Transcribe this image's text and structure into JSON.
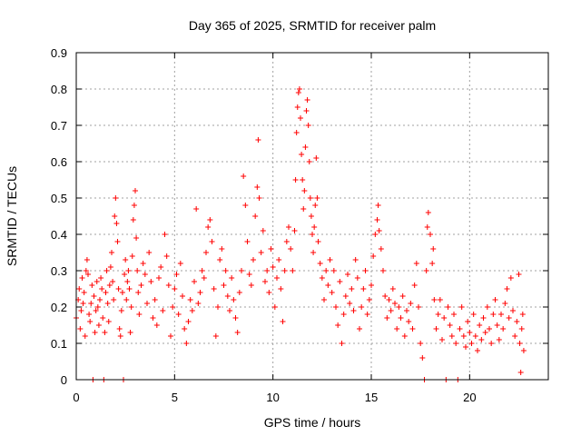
{
  "chart_data": {
    "type": "scatter",
    "title": "Day 365 of 2025, SRMTID for receiver palm",
    "xlabel": "GPS time / hours",
    "ylabel": "SRMTID / TECUs",
    "xlim": [
      0,
      24
    ],
    "ylim": [
      0,
      0.9
    ],
    "xticks": [
      0,
      5,
      10,
      15,
      20
    ],
    "yticks": [
      0,
      0.1,
      0.2,
      0.3,
      0.4,
      0.5,
      0.6,
      0.7,
      0.8,
      0.9
    ],
    "xtick_labels": [
      "0",
      "5",
      "10",
      "15",
      "20"
    ],
    "ytick_labels": [
      "0",
      "0.1",
      "0.2",
      "0.3",
      "0.4",
      "0.5",
      "0.6",
      "0.7",
      "0.8",
      "0.9"
    ],
    "grid": true,
    "marker": "+",
    "color": "#ff0000",
    "series": [
      {
        "name": "SRMTID",
        "points": [
          [
            0.0,
            0.17
          ],
          [
            0.1,
            0.22
          ],
          [
            0.15,
            0.25
          ],
          [
            0.2,
            0.14
          ],
          [
            0.25,
            0.19
          ],
          [
            0.3,
            0.28
          ],
          [
            0.35,
            0.21
          ],
          [
            0.4,
            0.24
          ],
          [
            0.45,
            0.12
          ],
          [
            0.5,
            0.3
          ],
          [
            0.55,
            0.33
          ],
          [
            0.6,
            0.29
          ],
          [
            0.65,
            0.18
          ],
          [
            0.7,
            0.16
          ],
          [
            0.75,
            0.21
          ],
          [
            0.8,
            0.26
          ],
          [
            0.85,
            0.0
          ],
          [
            0.9,
            0.23
          ],
          [
            0.95,
            0.13
          ],
          [
            1.0,
            0.19
          ],
          [
            1.05,
            0.27
          ],
          [
            1.1,
            0.2
          ],
          [
            1.15,
            0.15
          ],
          [
            1.2,
            0.22
          ],
          [
            1.25,
            0.28
          ],
          [
            1.3,
            0.25
          ],
          [
            1.35,
            0.17
          ],
          [
            1.4,
            0.0
          ],
          [
            1.45,
            0.13
          ],
          [
            1.5,
            0.24
          ],
          [
            1.55,
            0.3
          ],
          [
            1.6,
            0.21
          ],
          [
            1.65,
            0.16
          ],
          [
            1.7,
            0.26
          ],
          [
            1.75,
            0.31
          ],
          [
            1.8,
            0.35
          ],
          [
            1.85,
            0.27
          ],
          [
            1.9,
            0.22
          ],
          [
            1.95,
            0.45
          ],
          [
            2.0,
            0.5
          ],
          [
            2.05,
            0.43
          ],
          [
            2.1,
            0.38
          ],
          [
            2.15,
            0.25
          ],
          [
            2.2,
            0.14
          ],
          [
            2.25,
            0.12
          ],
          [
            2.3,
            0.19
          ],
          [
            2.35,
            0.24
          ],
          [
            2.4,
            0.0
          ],
          [
            2.45,
            0.29
          ],
          [
            2.5,
            0.33
          ],
          [
            2.55,
            0.22
          ],
          [
            2.6,
            0.27
          ],
          [
            2.65,
            0.3
          ],
          [
            2.7,
            0.25
          ],
          [
            2.75,
            0.13
          ],
          [
            2.8,
            0.2
          ],
          [
            2.85,
            0.34
          ],
          [
            2.9,
            0.44
          ],
          [
            2.95,
            0.48
          ],
          [
            3.0,
            0.52
          ],
          [
            3.05,
            0.39
          ],
          [
            3.1,
            0.3
          ],
          [
            3.15,
            0.24
          ],
          [
            3.2,
            0.18
          ],
          [
            3.3,
            0.26
          ],
          [
            3.4,
            0.32
          ],
          [
            3.5,
            0.29
          ],
          [
            3.6,
            0.21
          ],
          [
            3.7,
            0.35
          ],
          [
            3.8,
            0.27
          ],
          [
            3.9,
            0.17
          ],
          [
            4.0,
            0.22
          ],
          [
            4.1,
            0.15
          ],
          [
            4.2,
            0.28
          ],
          [
            4.3,
            0.31
          ],
          [
            4.4,
            0.19
          ],
          [
            4.5,
            0.4
          ],
          [
            4.6,
            0.34
          ],
          [
            4.7,
            0.26
          ],
          [
            4.8,
            0.12
          ],
          [
            4.9,
            0.2
          ],
          [
            5.0,
            0.25
          ],
          [
            5.1,
            0.29
          ],
          [
            5.2,
            0.18
          ],
          [
            5.3,
            0.32
          ],
          [
            5.4,
            0.23
          ],
          [
            5.5,
            0.14
          ],
          [
            5.6,
            0.1
          ],
          [
            5.7,
            0.16
          ],
          [
            5.8,
            0.22
          ],
          [
            5.9,
            0.19
          ],
          [
            6.0,
            0.27
          ],
          [
            6.1,
            0.47
          ],
          [
            6.2,
            0.21
          ],
          [
            6.3,
            0.24
          ],
          [
            6.4,
            0.3
          ],
          [
            6.5,
            0.28
          ],
          [
            6.6,
            0.35
          ],
          [
            6.7,
            0.42
          ],
          [
            6.8,
            0.44
          ],
          [
            6.9,
            0.38
          ],
          [
            7.0,
            0.25
          ],
          [
            7.1,
            0.12
          ],
          [
            7.2,
            0.2
          ],
          [
            7.3,
            0.33
          ],
          [
            7.4,
            0.36
          ],
          [
            7.5,
            0.26
          ],
          [
            7.6,
            0.3
          ],
          [
            7.7,
            0.23
          ],
          [
            7.8,
            0.19
          ],
          [
            7.9,
            0.28
          ],
          [
            8.0,
            0.22
          ],
          [
            8.1,
            0.17
          ],
          [
            8.2,
            0.13
          ],
          [
            8.3,
            0.24
          ],
          [
            8.4,
            0.3
          ],
          [
            8.5,
            0.56
          ],
          [
            8.6,
            0.48
          ],
          [
            8.7,
            0.38
          ],
          [
            8.8,
            0.29
          ],
          [
            8.9,
            0.26
          ],
          [
            9.0,
            0.33
          ],
          [
            9.1,
            0.45
          ],
          [
            9.2,
            0.53
          ],
          [
            9.25,
            0.66
          ],
          [
            9.3,
            0.5
          ],
          [
            9.4,
            0.35
          ],
          [
            9.5,
            0.41
          ],
          [
            9.6,
            0.27
          ],
          [
            9.7,
            0.3
          ],
          [
            9.8,
            0.24
          ],
          [
            9.9,
            0.36
          ],
          [
            10.0,
            0.31
          ],
          [
            10.1,
            0.2
          ],
          [
            10.2,
            0.28
          ],
          [
            10.3,
            0.33
          ],
          [
            10.4,
            0.25
          ],
          [
            10.5,
            0.16
          ],
          [
            10.6,
            0.3
          ],
          [
            10.7,
            0.38
          ],
          [
            10.8,
            0.42
          ],
          [
            10.9,
            0.36
          ],
          [
            11.0,
            0.3
          ],
          [
            11.1,
            0.41
          ],
          [
            11.15,
            0.55
          ],
          [
            11.2,
            0.68
          ],
          [
            11.25,
            0.75
          ],
          [
            11.3,
            0.79
          ],
          [
            11.35,
            0.8
          ],
          [
            11.4,
            0.72
          ],
          [
            11.45,
            0.62
          ],
          [
            11.5,
            0.55
          ],
          [
            11.55,
            0.47
          ],
          [
            11.6,
            0.52
          ],
          [
            11.65,
            0.64
          ],
          [
            11.7,
            0.74
          ],
          [
            11.75,
            0.77
          ],
          [
            11.8,
            0.7
          ],
          [
            11.85,
            0.6
          ],
          [
            11.9,
            0.5
          ],
          [
            11.95,
            0.45
          ],
          [
            12.0,
            0.4
          ],
          [
            12.05,
            0.35
          ],
          [
            12.1,
            0.42
          ],
          [
            12.15,
            0.48
          ],
          [
            12.2,
            0.61
          ],
          [
            12.25,
            0.5
          ],
          [
            12.3,
            0.38
          ],
          [
            12.4,
            0.32
          ],
          [
            12.5,
            0.28
          ],
          [
            12.6,
            0.22
          ],
          [
            12.7,
            0.3
          ],
          [
            12.8,
            0.26
          ],
          [
            12.9,
            0.33
          ],
          [
            13.0,
            0.24
          ],
          [
            13.1,
            0.3
          ],
          [
            13.2,
            0.2
          ],
          [
            13.3,
            0.15
          ],
          [
            13.4,
            0.27
          ],
          [
            13.5,
            0.1
          ],
          [
            13.6,
            0.18
          ],
          [
            13.7,
            0.23
          ],
          [
            13.8,
            0.29
          ],
          [
            13.9,
            0.21
          ],
          [
            14.0,
            0.25
          ],
          [
            14.1,
            0.19
          ],
          [
            14.2,
            0.33
          ],
          [
            14.3,
            0.28
          ],
          [
            14.4,
            0.14
          ],
          [
            14.5,
            0.2
          ],
          [
            14.6,
            0.25
          ],
          [
            14.7,
            0.3
          ],
          [
            14.8,
            0.18
          ],
          [
            14.9,
            0.22
          ],
          [
            15.0,
            0.26
          ],
          [
            15.1,
            0.34
          ],
          [
            15.2,
            0.4
          ],
          [
            15.3,
            0.44
          ],
          [
            15.35,
            0.48
          ],
          [
            15.4,
            0.41
          ],
          [
            15.5,
            0.36
          ],
          [
            15.6,
            0.3
          ],
          [
            15.7,
            0.23
          ],
          [
            15.8,
            0.17
          ],
          [
            15.9,
            0.22
          ],
          [
            16.0,
            0.19
          ],
          [
            16.1,
            0.25
          ],
          [
            16.2,
            0.21
          ],
          [
            16.3,
            0.14
          ],
          [
            16.4,
            0.2
          ],
          [
            16.5,
            0.17
          ],
          [
            16.6,
            0.23
          ],
          [
            16.7,
            0.12
          ],
          [
            16.8,
            0.19
          ],
          [
            16.9,
            0.16
          ],
          [
            17.0,
            0.21
          ],
          [
            17.1,
            0.14
          ],
          [
            17.2,
            0.26
          ],
          [
            17.3,
            0.32
          ],
          [
            17.4,
            0.2
          ],
          [
            17.5,
            0.1
          ],
          [
            17.6,
            0.06
          ],
          [
            17.7,
            0.0
          ],
          [
            17.8,
            0.3
          ],
          [
            17.85,
            0.42
          ],
          [
            17.9,
            0.46
          ],
          [
            18.0,
            0.4
          ],
          [
            18.1,
            0.32
          ],
          [
            18.15,
            0.36
          ],
          [
            18.2,
            0.22
          ],
          [
            18.3,
            0.14
          ],
          [
            18.4,
            0.18
          ],
          [
            18.5,
            0.22
          ],
          [
            18.6,
            0.11
          ],
          [
            18.7,
            0.17
          ],
          [
            18.8,
            0.0
          ],
          [
            18.9,
            0.2
          ],
          [
            19.0,
            0.15
          ],
          [
            19.1,
            0.12
          ],
          [
            19.2,
            0.18
          ],
          [
            19.3,
            0.1
          ],
          [
            19.4,
            0.0
          ],
          [
            19.5,
            0.14
          ],
          [
            19.6,
            0.2
          ],
          [
            19.7,
            0.12
          ],
          [
            19.8,
            0.09
          ],
          [
            19.9,
            0.16
          ],
          [
            20.0,
            0.13
          ],
          [
            20.1,
            0.1
          ],
          [
            20.2,
            0.18
          ],
          [
            20.3,
            0.12
          ],
          [
            20.4,
            0.08
          ],
          [
            20.5,
            0.15
          ],
          [
            20.6,
            0.11
          ],
          [
            20.7,
            0.17
          ],
          [
            20.8,
            0.13
          ],
          [
            20.9,
            0.2
          ],
          [
            21.0,
            0.14
          ],
          [
            21.1,
            0.1
          ],
          [
            21.2,
            0.18
          ],
          [
            21.3,
            0.22
          ],
          [
            21.4,
            0.15
          ],
          [
            21.5,
            0.11
          ],
          [
            21.6,
            0.18
          ],
          [
            21.7,
            0.14
          ],
          [
            21.8,
            0.21
          ],
          [
            21.9,
            0.25
          ],
          [
            22.0,
            0.17
          ],
          [
            22.1,
            0.28
          ],
          [
            22.2,
            0.19
          ],
          [
            22.3,
            0.12
          ],
          [
            22.4,
            0.16
          ],
          [
            22.5,
            0.29
          ],
          [
            22.55,
            0.1
          ],
          [
            22.6,
            0.02
          ],
          [
            22.65,
            0.14
          ],
          [
            22.7,
            0.18
          ],
          [
            22.75,
            0.08
          ]
        ]
      }
    ]
  }
}
